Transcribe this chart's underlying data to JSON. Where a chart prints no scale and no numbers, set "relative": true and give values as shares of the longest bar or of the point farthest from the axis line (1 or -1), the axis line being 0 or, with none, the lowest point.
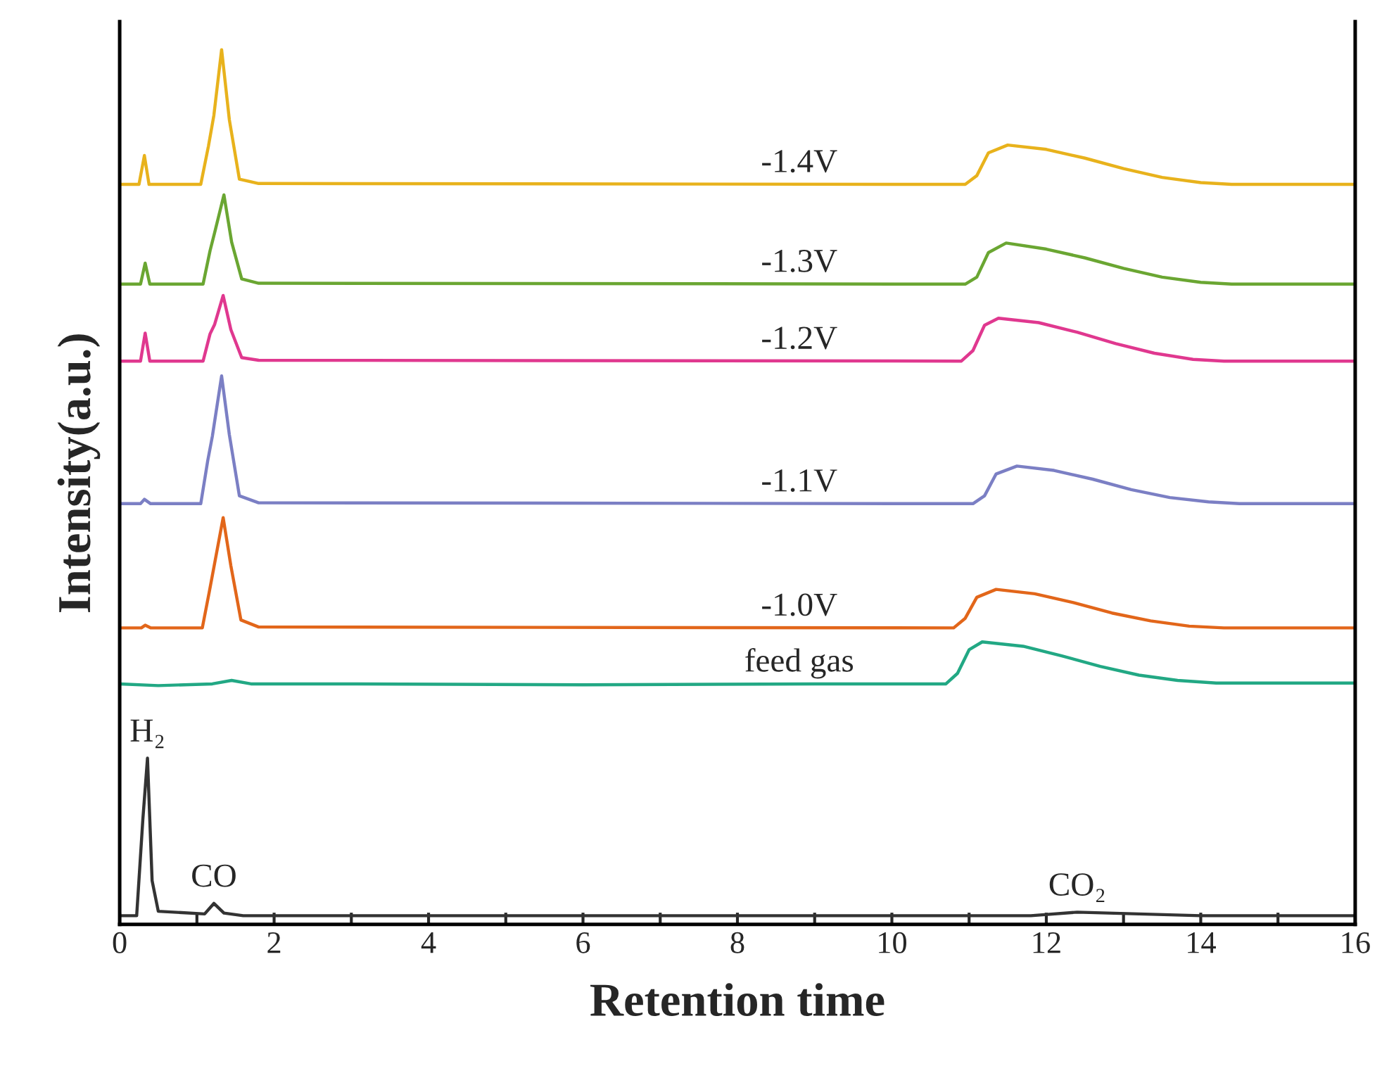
{
  "chart_data": {
    "type": "line",
    "relative": true,
    "xlabel": "Retention time",
    "ylabel": "Intensity(a.u.)",
    "xlim": [
      0,
      16
    ],
    "xticks": [
      0,
      {
        "value": 1,
        "label": null
      },
      2,
      {
        "value": 3,
        "label": null
      },
      4,
      {
        "value": 5,
        "label": null
      },
      6,
      {
        "value": 7,
        "label": null
      },
      8,
      {
        "value": 9,
        "label": null
      },
      10,
      {
        "value": 11,
        "label": null
      },
      12,
      {
        "value": 13,
        "label": null
      },
      14,
      {
        "value": 15,
        "label": null
      },
      16
    ],
    "tick_labels": "x",
    "grid": false,
    "legend": false,
    "series": [
      {
        "name": "-1.4V",
        "color": "#e8b21c",
        "x": [
          0,
          0.25,
          0.32,
          0.38,
          1.05,
          1.15,
          1.22,
          1.32,
          1.42,
          1.55,
          1.8,
          10.95,
          11.1,
          11.25,
          11.5,
          12.0,
          12.5,
          13.0,
          13.5,
          14.0,
          14.4,
          16
        ],
        "values": [
          0.846,
          0.846,
          0.879,
          0.846,
          0.846,
          0.89,
          0.925,
          1,
          0.92,
          0.852,
          0.847,
          0.846,
          0.856,
          0.882,
          0.891,
          0.886,
          0.876,
          0.864,
          0.854,
          0.848,
          0.846,
          0.846
        ]
      },
      {
        "name": "-1.3V",
        "color": "#6aa632",
        "x": [
          0,
          0.27,
          0.33,
          0.39,
          1.08,
          1.17,
          1.23,
          1.35,
          1.45,
          1.58,
          1.8,
          10.95,
          11.1,
          11.25,
          11.48,
          12.0,
          12.5,
          13.0,
          13.5,
          14.0,
          14.4,
          16
        ],
        "values": [
          0.732,
          0.732,
          0.756,
          0.732,
          0.732,
          0.77,
          0.791,
          0.834,
          0.78,
          0.738,
          0.733,
          0.732,
          0.74,
          0.768,
          0.779,
          0.772,
          0.762,
          0.75,
          0.74,
          0.734,
          0.732,
          0.732
        ]
      },
      {
        "name": "-1.2V",
        "color": "#e0388f",
        "x": [
          0,
          0.27,
          0.33,
          0.39,
          1.08,
          1.17,
          1.23,
          1.34,
          1.44,
          1.58,
          1.8,
          10.9,
          11.05,
          11.2,
          11.38,
          11.9,
          12.4,
          12.9,
          13.4,
          13.9,
          14.3,
          16
        ],
        "values": [
          0.644,
          0.644,
          0.676,
          0.644,
          0.644,
          0.675,
          0.686,
          0.719,
          0.68,
          0.648,
          0.645,
          0.644,
          0.656,
          0.685,
          0.693,
          0.688,
          0.677,
          0.664,
          0.653,
          0.646,
          0.644,
          0.644
        ]
      },
      {
        "name": "-1.1V",
        "color": "#7b7fc4",
        "x": [
          0,
          0.27,
          0.32,
          0.4,
          1.05,
          1.14,
          1.2,
          1.32,
          1.42,
          1.55,
          1.8,
          11.05,
          11.2,
          11.35,
          11.62,
          12.1,
          12.6,
          13.1,
          13.6,
          14.1,
          14.5,
          16
        ],
        "values": [
          0.481,
          0.481,
          0.486,
          0.481,
          0.481,
          0.53,
          0.558,
          0.627,
          0.56,
          0.49,
          0.482,
          0.481,
          0.49,
          0.515,
          0.524,
          0.519,
          0.509,
          0.497,
          0.488,
          0.483,
          0.481,
          0.481
        ]
      },
      {
        "name": "-1.0V",
        "color": "#e2661a",
        "x": [
          0,
          0.28,
          0.33,
          0.4,
          1.07,
          1.16,
          1.23,
          1.34,
          1.44,
          1.57,
          1.8,
          10.8,
          10.95,
          11.1,
          11.35,
          11.85,
          12.35,
          12.85,
          13.35,
          13.85,
          14.3,
          16
        ],
        "values": [
          0.339,
          0.339,
          0.342,
          0.339,
          0.339,
          0.38,
          0.413,
          0.465,
          0.41,
          0.348,
          0.34,
          0.339,
          0.35,
          0.374,
          0.383,
          0.378,
          0.368,
          0.356,
          0.347,
          0.341,
          0.339,
          0.339
        ]
      },
      {
        "name": "feed gas",
        "color": "#22a884",
        "x": [
          0,
          0.5,
          1.2,
          1.45,
          1.7,
          3,
          6,
          9,
          10.7,
          10.85,
          11.0,
          11.17,
          11.7,
          12.2,
          12.7,
          13.2,
          13.7,
          14.2,
          16
        ],
        "values": [
          0.275,
          0.273,
          0.275,
          0.279,
          0.275,
          0.275,
          0.274,
          0.275,
          0.275,
          0.287,
          0.314,
          0.323,
          0.318,
          0.307,
          0.295,
          0.285,
          0.279,
          0.276,
          0.276
        ]
      },
      {
        "color": "#333333",
        "x": [
          0,
          0.22,
          0.3,
          0.36,
          0.42,
          0.5,
          1.1,
          1.22,
          1.35,
          1.6,
          3,
          11.8,
          12.4,
          13.2,
          14,
          16
        ],
        "values": [
          0.01,
          0.01,
          0.12,
          0.19,
          0.05,
          0.015,
          0.012,
          0.024,
          0.013,
          0.01,
          0.01,
          0.01,
          0.014,
          0.012,
          0.01,
          0.01
        ]
      }
    ],
    "annotations": [
      {
        "text": "H₂",
        "x": 0.36,
        "y": 0.19
      },
      {
        "text": "CO",
        "x": 1.22,
        "y": 0.024
      },
      {
        "text": "CO₂",
        "x": 12.4,
        "y": 0.014
      }
    ]
  }
}
